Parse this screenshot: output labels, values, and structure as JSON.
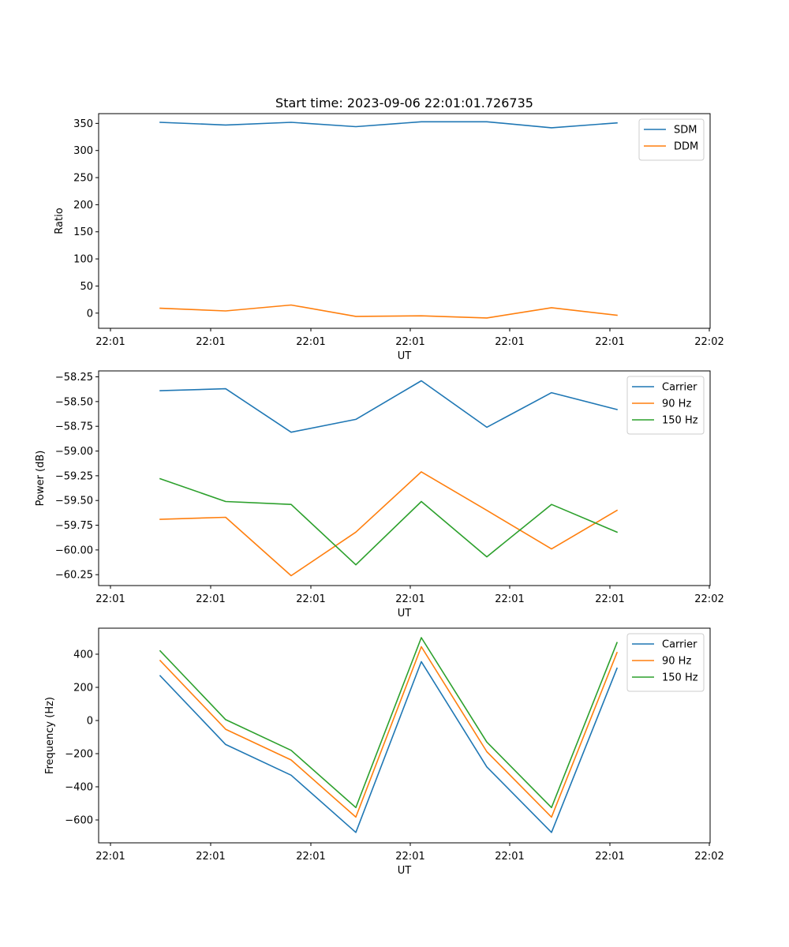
{
  "chart_data": [
    {
      "type": "line",
      "title": "Start time: 2023-09-06 22:01:01.726735",
      "xlabel": "UT",
      "ylabel": "Ratio",
      "xticklabels": [
        "22:01",
        "22:01",
        "22:01",
        "22:01",
        "22:01",
        "22:01",
        "22:01"
      ],
      "xticklabel_end": "22:02",
      "ylim": [
        -28,
        368
      ],
      "yticks": [
        0,
        50,
        100,
        150,
        200,
        250,
        300,
        350
      ],
      "yticklabels": [
        "0",
        "50",
        "100",
        "150",
        "200",
        "250",
        "300",
        "350"
      ],
      "legend_location": "upper right",
      "series": [
        {
          "name": "SDM",
          "color": "#1f77b4",
          "values": [
            352,
            347,
            352,
            344,
            353,
            353,
            342,
            351
          ]
        },
        {
          "name": "DDM",
          "color": "#ff7f0e",
          "values": [
            9,
            4,
            15,
            -6,
            -5,
            -9,
            10,
            -4
          ]
        }
      ]
    },
    {
      "type": "line",
      "title": "",
      "xlabel": "UT",
      "ylabel": "Power (dB)",
      "xticklabels": [
        "22:01",
        "22:01",
        "22:01",
        "22:01",
        "22:01",
        "22:01",
        "22:01"
      ],
      "xticklabel_end": "22:02",
      "ylim": [
        -60.36,
        -58.19
      ],
      "yticks": [
        -60.25,
        -60.0,
        -59.75,
        -59.5,
        -59.25,
        -59.0,
        -58.75,
        -58.5,
        -58.25
      ],
      "yticklabels": [
        "−60.25",
        "−60.00",
        "−59.75",
        "−59.50",
        "−59.25",
        "−59.00",
        "−58.75",
        "−58.50",
        "−58.25"
      ],
      "legend_location": "upper right",
      "series": [
        {
          "name": "Carrier",
          "color": "#1f77b4",
          "values": [
            -58.39,
            -58.37,
            -58.81,
            -58.68,
            -58.29,
            -58.76,
            -58.41,
            -58.58
          ]
        },
        {
          "name": "90 Hz",
          "color": "#ff7f0e",
          "values": [
            -59.69,
            -59.67,
            -60.26,
            -59.82,
            -59.21,
            -59.6,
            -59.99,
            -59.6
          ]
        },
        {
          "name": "150 Hz",
          "color": "#2ca02c",
          "values": [
            -59.28,
            -59.51,
            -59.54,
            -60.15,
            -59.51,
            -60.07,
            -59.54,
            -59.82
          ]
        }
      ]
    },
    {
      "type": "line",
      "title": "",
      "xlabel": "UT",
      "ylabel": "Frequency (Hz)",
      "xticklabels": [
        "22:01",
        "22:01",
        "22:01",
        "22:01",
        "22:01",
        "22:01",
        "22:01"
      ],
      "xticklabel_end": "22:02",
      "ylim": [
        -738,
        557
      ],
      "yticks": [
        -600,
        -400,
        -200,
        0,
        200,
        400
      ],
      "yticklabels": [
        "−600",
        "−400",
        "−200",
        "0",
        "200",
        "400"
      ],
      "legend_location": "upper right",
      "series": [
        {
          "name": "Carrier",
          "color": "#1f77b4",
          "values": [
            270,
            -145,
            -330,
            -675,
            355,
            -280,
            -675,
            315
          ]
        },
        {
          "name": "90 Hz",
          "color": "#ff7f0e",
          "values": [
            362,
            -53,
            -238,
            -583,
            445,
            -188,
            -583,
            410
          ]
        },
        {
          "name": "150 Hz",
          "color": "#2ca02c",
          "values": [
            420,
            5,
            -180,
            -525,
            500,
            -130,
            -525,
            470
          ]
        }
      ]
    }
  ]
}
